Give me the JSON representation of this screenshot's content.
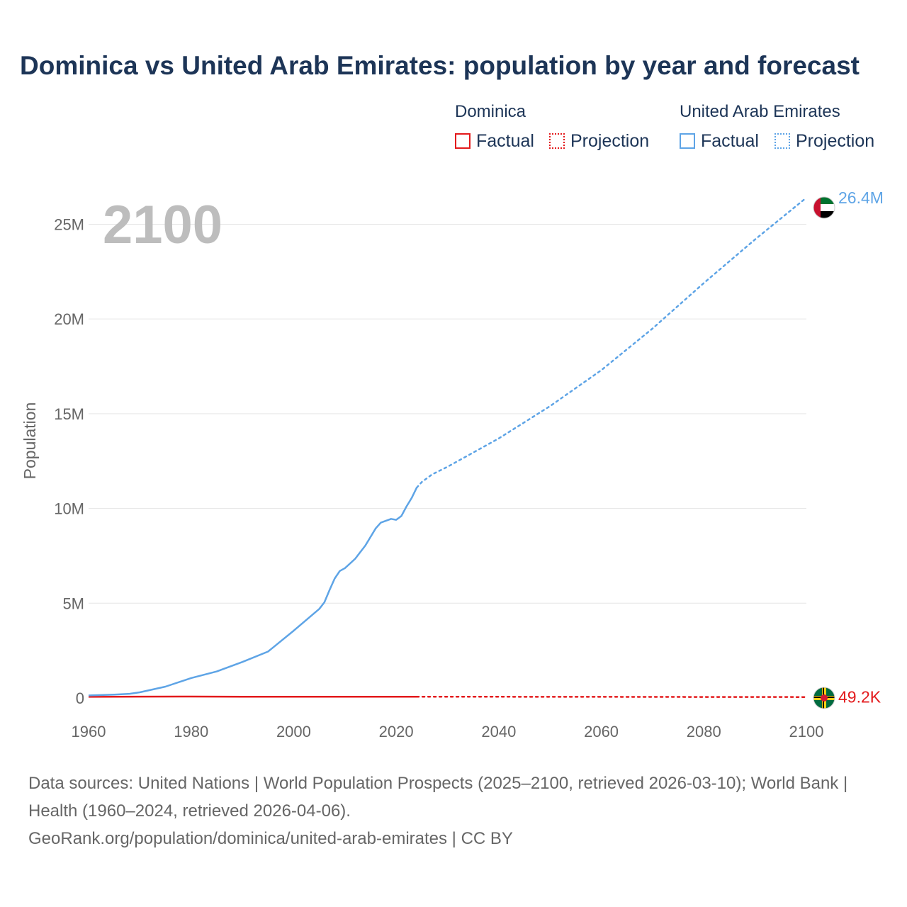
{
  "chart_data": {
    "type": "line",
    "title": "Dominica vs United Arab Emirates: population by year and forecast",
    "current_year_label": "2100",
    "ylabel": "Population",
    "xlabel": "",
    "xlim": [
      1960,
      2100
    ],
    "ylim": [
      0,
      27000000
    ],
    "x_ticks": [
      1960,
      1980,
      2000,
      2020,
      2040,
      2060,
      2080,
      2100
    ],
    "x_tick_labels": [
      "1960",
      "1980",
      "2000",
      "2020",
      "2040",
      "2060",
      "2080",
      "2100"
    ],
    "y_ticks": [
      0,
      5000000,
      10000000,
      15000000,
      20000000,
      25000000
    ],
    "y_tick_labels": [
      "0",
      "5M",
      "10M",
      "15M",
      "20M",
      "25M"
    ],
    "grid": true,
    "legend": {
      "placement": "top-right",
      "factual_label": "Factual",
      "projection_label": "Projection"
    },
    "series": [
      {
        "name": "Dominica",
        "color": "#e31a1c",
        "end_label": "49.2K",
        "factual": {
          "x": [
            1960,
            1970,
            1980,
            1990,
            2000,
            2010,
            2020,
            2024
          ],
          "y": [
            60000,
            70000,
            75000,
            69000,
            69000,
            68000,
            66000,
            66000
          ]
        },
        "projection": {
          "x": [
            2024,
            2040,
            2060,
            2080,
            2100
          ],
          "y": [
            66000,
            63000,
            59000,
            54000,
            49200
          ]
        }
      },
      {
        "name": "United Arab Emirates",
        "color": "#5ea4e6",
        "end_label": "26.4M",
        "factual": {
          "x": [
            1960,
            1965,
            1968,
            1970,
            1975,
            1980,
            1985,
            1990,
            1995,
            2000,
            2005,
            2006,
            2007,
            2008,
            2009,
            2010,
            2012,
            2014,
            2016,
            2017,
            2019,
            2020,
            2021,
            2022,
            2023,
            2024
          ],
          "y": [
            130000,
            180000,
            220000,
            300000,
            600000,
            1050000,
            1400000,
            1900000,
            2450000,
            3550000,
            4700000,
            5050000,
            5700000,
            6300000,
            6700000,
            6850000,
            7350000,
            8050000,
            8950000,
            9250000,
            9450000,
            9400000,
            9600000,
            10100000,
            10550000,
            11100000
          ]
        },
        "projection": {
          "x": [
            2024,
            2025,
            2027,
            2030,
            2040,
            2050,
            2060,
            2070,
            2080,
            2090,
            2100
          ],
          "y": [
            11100000,
            11400000,
            11800000,
            12200000,
            13700000,
            15400000,
            17300000,
            19500000,
            21900000,
            24200000,
            26400000
          ]
        }
      }
    ]
  },
  "legend": {
    "groups": [
      {
        "name": "Dominica",
        "factual": "Factual",
        "projection": "Projection",
        "color": "#e31a1c"
      },
      {
        "name": "United Arab Emirates",
        "factual": "Factual",
        "projection": "Projection",
        "color": "#5ea4e6"
      }
    ]
  },
  "flags": {
    "uae": "uae-flag-icon",
    "dominica": "dominica-flag-icon"
  },
  "source": {
    "line1": "Data sources: United Nations | World Population Prospects (2025–2100, retrieved 2026-03-10); World Bank | Health (1960–2024, retrieved 2026-04-06).",
    "line2": "GeoRank.org/population/dominica/united-arab-emirates | CC BY"
  }
}
